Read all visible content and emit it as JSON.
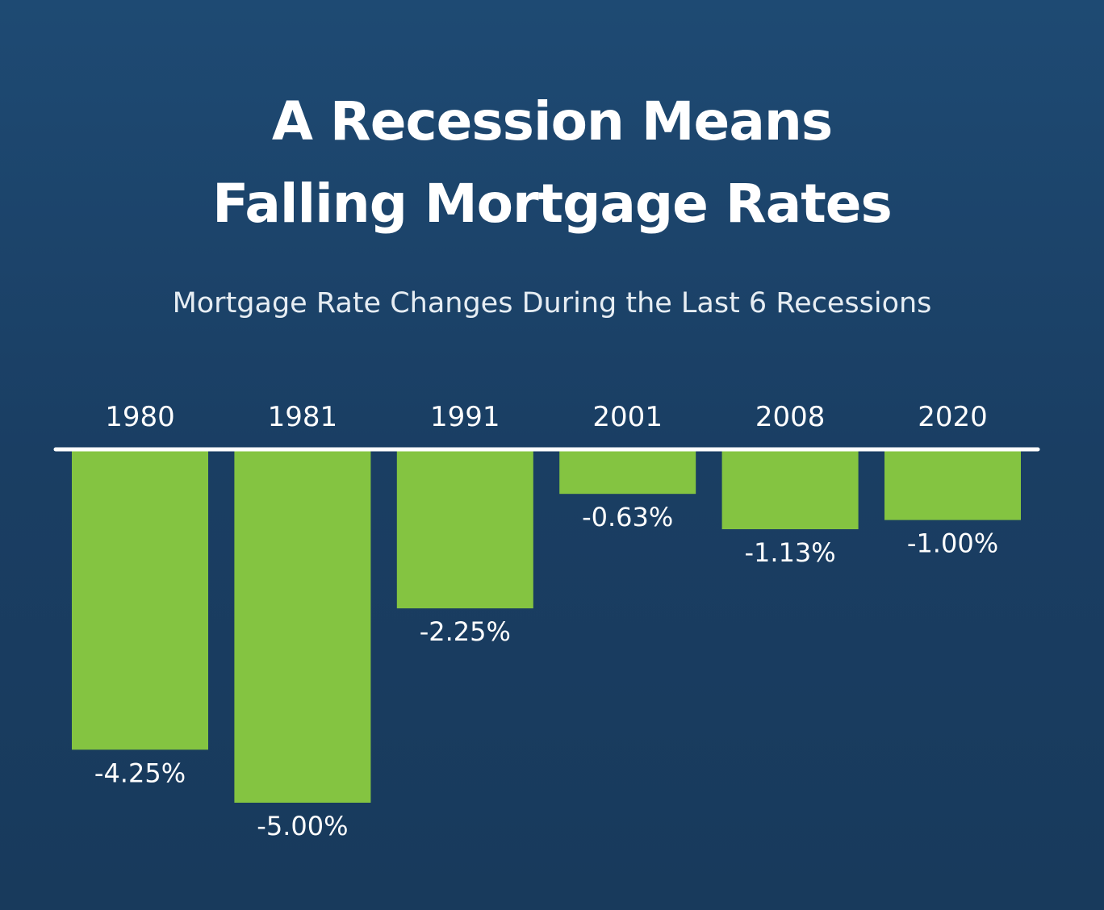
{
  "title_line1": "A Recession Means",
  "title_line2": "Falling Mortgage Rates",
  "subtitle": "Mortgage Rate Changes During the Last 6 Recessions",
  "colors": {
    "bar": "#84c441",
    "baseline": "#ffffff",
    "background": "#1c4268"
  },
  "chart_data": {
    "type": "bar",
    "categories": [
      "1980",
      "1981",
      "1991",
      "2001",
      "2008",
      "2020"
    ],
    "values": [
      -4.25,
      -5.0,
      -2.25,
      -0.63,
      -1.13,
      -1.0
    ],
    "value_labels": [
      "-4.25%",
      "-5.00%",
      "-2.25%",
      "-0.63%",
      "-1.13%",
      "-1.00%"
    ],
    "title": "A Recession Means Falling Mortgage Rates",
    "subtitle": "Mortgage Rate Changes During the Last 6 Recessions",
    "xlabel": "",
    "ylabel": "",
    "ylim": [
      -5.0,
      0
    ],
    "grid": false,
    "legend": "none"
  }
}
